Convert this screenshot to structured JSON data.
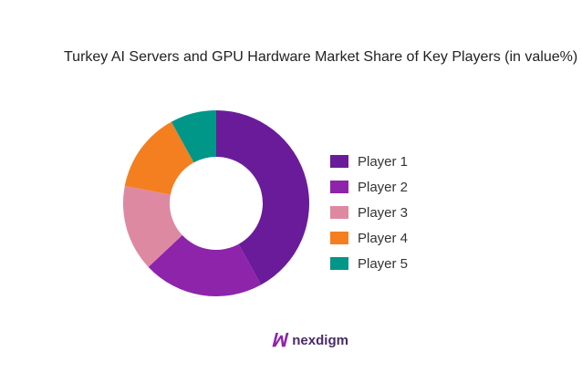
{
  "chart_data": {
    "type": "pie",
    "donut": true,
    "title": "Turkey AI Servers and GPU Hardware Market Share of Key Players (in value%)",
    "categories": [
      "Player 1",
      "Player 2",
      "Player 3",
      "Player 4",
      "Player 5"
    ],
    "values": [
      42,
      21,
      15,
      14,
      8
    ],
    "colors": [
      "#6A1B9A",
      "#8E24AA",
      "#DE89A2",
      "#F47F20",
      "#009688"
    ],
    "legend_position": "right"
  },
  "brand": {
    "logo_text": "nexdigm"
  }
}
